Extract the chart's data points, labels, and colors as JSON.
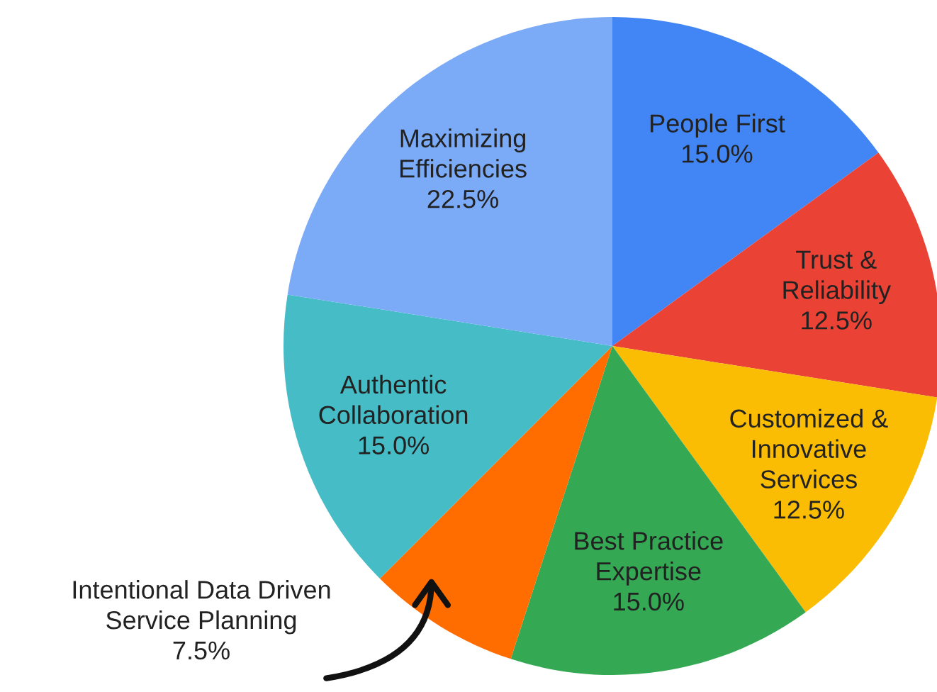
{
  "chart_data": {
    "type": "pie",
    "categories": [
      "People First",
      "Trust & Reliability",
      "Customized & Innovative Services",
      "Best Practice Expertise",
      "Intentional Data Driven Service Planning",
      "Authentic Collaboration",
      "Maximizing Efficiencies"
    ],
    "values": [
      15.0,
      12.5,
      12.5,
      15.0,
      7.5,
      15.0,
      22.5
    ],
    "value_labels": [
      "15.0%",
      "12.5%",
      "12.5%",
      "15.0%",
      "7.5%",
      "15.0%",
      "22.5%"
    ],
    "colors": [
      "#4285f4",
      "#ea4335",
      "#fbbc04",
      "#34a853",
      "#ff6d01",
      "#46bdc6",
      "#7baaf7"
    ],
    "legend": false
  }
}
